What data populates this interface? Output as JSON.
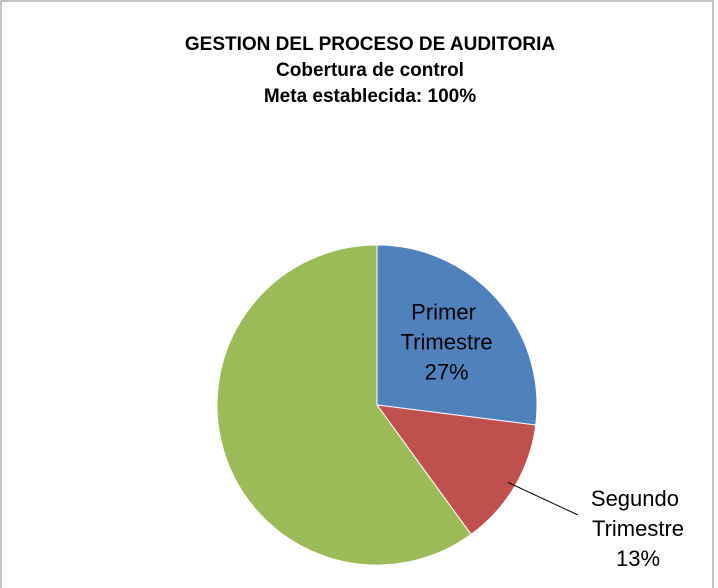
{
  "chart_data": {
    "type": "pie",
    "title": [
      "GESTION DEL PROCESO DE AUDITORIA",
      "Cobertura de control",
      "Meta establecida: 100%"
    ],
    "categories": [
      "Primer Trimestre",
      "Segundo Trimestre",
      null
    ],
    "values": [
      27,
      13,
      60
    ],
    "value_labels": [
      "27%",
      "13%",
      null
    ],
    "colors": [
      "#4f81bd",
      "#c0504d",
      "#9bbb59"
    ]
  }
}
